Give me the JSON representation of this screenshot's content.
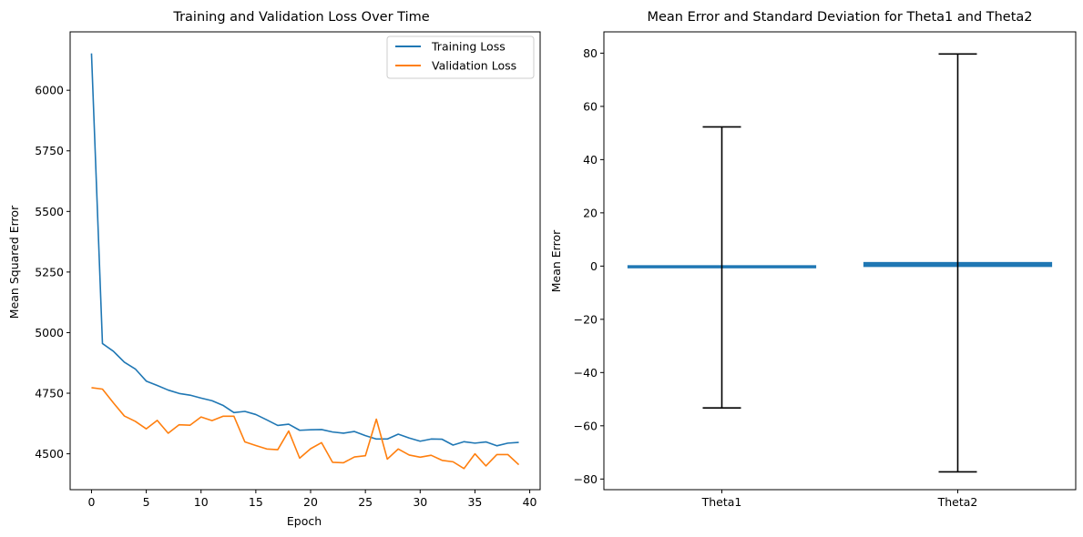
{
  "chart_data": [
    {
      "type": "line",
      "title": "Training and Validation Loss Over Time",
      "xlabel": "Epoch",
      "ylabel": "Mean Squared Error",
      "xlim": [
        -1.95,
        40.95
      ],
      "ylim": [
        4352,
        6241
      ],
      "xticks": [
        0,
        5,
        10,
        15,
        20,
        25,
        30,
        35,
        40
      ],
      "yticks": [
        4500,
        4750,
        5000,
        5250,
        5500,
        5750,
        6000
      ],
      "grid": false,
      "legend": "top-right",
      "x": [
        0,
        1,
        2,
        3,
        4,
        5,
        6,
        7,
        8,
        9,
        10,
        11,
        12,
        13,
        14,
        15,
        16,
        17,
        18,
        19,
        20,
        21,
        22,
        23,
        24,
        25,
        26,
        27,
        28,
        29,
        30,
        31,
        32,
        33,
        34,
        35,
        36,
        37,
        38,
        39
      ],
      "series": [
        {
          "name": "Training Loss",
          "color": "#1f77b4",
          "values": [
            6152,
            4955,
            4923,
            4878,
            4850,
            4800,
            4782,
            4763,
            4749,
            4742,
            4730,
            4719,
            4700,
            4670,
            4675,
            4662,
            4640,
            4617,
            4622,
            4597,
            4599,
            4600,
            4590,
            4585,
            4592,
            4575,
            4561,
            4561,
            4581,
            4565,
            4552,
            4561,
            4560,
            4536,
            4550,
            4544,
            4549,
            4533,
            4544,
            4547
          ]
        },
        {
          "name": "Validation Loss",
          "color": "#ff7f0e",
          "values": [
            4773,
            4767,
            4710,
            4656,
            4634,
            4603,
            4638,
            4585,
            4620,
            4618,
            4652,
            4637,
            4655,
            4655,
            4549,
            4534,
            4520,
            4517,
            4594,
            4482,
            4521,
            4546,
            4465,
            4463,
            4487,
            4492,
            4643,
            4478,
            4520,
            4495,
            4486,
            4494,
            4473,
            4467,
            4439,
            4500,
            4450,
            4497,
            4497,
            4455
          ]
        }
      ]
    },
    {
      "type": "bar",
      "title": "Mean Error and Standard Deviation for Theta1 and Theta2",
      "xlabel": "",
      "ylabel": "Mean Error",
      "ylim": [
        -84,
        88
      ],
      "yticks": [
        -80,
        -60,
        -40,
        -20,
        0,
        20,
        40,
        60,
        80
      ],
      "grid": false,
      "categories": [
        "Theta1",
        "Theta2"
      ],
      "values": [
        -0.5,
        1.2
      ],
      "error": [
        52.8,
        78.5
      ],
      "color": "#1f77b4",
      "error_color": "#000000"
    }
  ]
}
